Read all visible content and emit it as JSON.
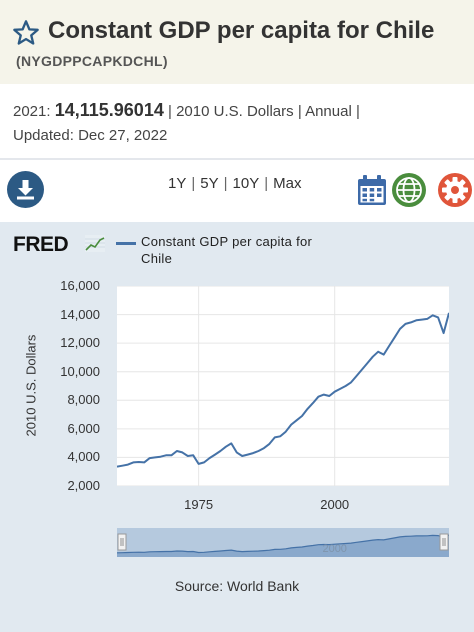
{
  "header": {
    "title": "Constant GDP per capita for Chile",
    "series_id": "(NYGDPPCAPKDCHL)"
  },
  "observation": {
    "year": "2021:",
    "value": "14,115.96014",
    "units": "2010 U.S. Dollars",
    "frequency": "Annual",
    "updated_label": "Updated:",
    "updated_date": "Dec 27, 2022"
  },
  "toolbar": {
    "ranges": [
      "1Y",
      "5Y",
      "10Y",
      "Max"
    ]
  },
  "colors": {
    "line": "#4572a7",
    "chart_bg": "#e1e9f0",
    "header_bg": "#f5f4ea",
    "download": "#2c5a84",
    "calendar": "#3d6aa8",
    "globe": "#4a8d3d",
    "gear": "#e0553a"
  },
  "icons": [
    "star-icon",
    "download-icon",
    "calendar-icon",
    "globe-icon",
    "gear-icon",
    "fred-logo"
  ],
  "brand": "FRED",
  "source": "Source: World Bank",
  "chart_data": {
    "type": "line",
    "ylabel": "2010 U.S. Dollars",
    "legend": "Constant GDP per capita for Chile",
    "legend_position": "top",
    "grid": true,
    "xlim": [
      1960,
      2021
    ],
    "ylim": [
      2000,
      16000
    ],
    "yticks": [
      "16,000",
      "14,000",
      "12,000",
      "10,000",
      "8,000",
      "6,000",
      "4,000",
      "2,000"
    ],
    "xticks": [
      "1975",
      "2000"
    ],
    "navigator_label": "2000",
    "x": [
      1960,
      1961,
      1962,
      1963,
      1964,
      1965,
      1966,
      1967,
      1968,
      1969,
      1970,
      1971,
      1972,
      1973,
      1974,
      1975,
      1976,
      1977,
      1978,
      1979,
      1980,
      1981,
      1982,
      1983,
      1984,
      1985,
      1986,
      1987,
      1988,
      1989,
      1990,
      1991,
      1992,
      1993,
      1994,
      1995,
      1996,
      1997,
      1998,
      1999,
      2000,
      2001,
      2002,
      2003,
      2004,
      2005,
      2006,
      2007,
      2008,
      2009,
      2010,
      2011,
      2012,
      2013,
      2014,
      2015,
      2016,
      2017,
      2018,
      2019,
      2020,
      2021
    ],
    "series": [
      {
        "name": "Constant GDP per capita for Chile",
        "values": [
          3350,
          3420,
          3500,
          3650,
          3680,
          3650,
          3950,
          4000,
          4050,
          4150,
          4150,
          4450,
          4350,
          4100,
          4150,
          3550,
          3650,
          3950,
          4200,
          4450,
          4750,
          4980,
          4350,
          4100,
          4200,
          4300,
          4450,
          4650,
          4950,
          5400,
          5480,
          5800,
          6300,
          6600,
          6900,
          7400,
          7800,
          8250,
          8400,
          8300,
          8600,
          8800,
          9000,
          9250,
          9700,
          10150,
          10600,
          11050,
          11400,
          11200,
          11800,
          12400,
          13000,
          13350,
          13450,
          13600,
          13650,
          13700,
          13950,
          13800,
          12700,
          14116
        ]
      }
    ]
  }
}
